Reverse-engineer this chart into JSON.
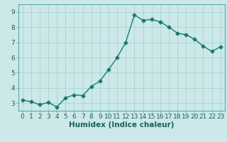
{
  "x": [
    0,
    1,
    2,
    3,
    4,
    5,
    6,
    7,
    8,
    9,
    10,
    11,
    12,
    13,
    14,
    15,
    16,
    17,
    18,
    19,
    20,
    21,
    22,
    23
  ],
  "y": [
    3.2,
    3.1,
    2.9,
    3.05,
    2.75,
    3.35,
    3.55,
    3.5,
    4.1,
    4.45,
    5.2,
    6.0,
    7.0,
    8.8,
    8.45,
    8.5,
    8.35,
    8.0,
    7.6,
    7.5,
    7.2,
    6.75,
    6.4,
    6.7
  ],
  "line_color": "#1a7a6e",
  "marker": "D",
  "marker_size": 2.5,
  "bg_color": "#cce8e8",
  "grid_color": "#aad4d4",
  "xlabel": "Humidex (Indice chaleur)",
  "ylim": [
    2.5,
    9.5
  ],
  "xlim": [
    -0.5,
    23.5
  ],
  "yticks": [
    3,
    4,
    5,
    6,
    7,
    8,
    9
  ],
  "xticks": [
    0,
    1,
    2,
    3,
    4,
    5,
    6,
    7,
    8,
    9,
    10,
    11,
    12,
    13,
    14,
    15,
    16,
    17,
    18,
    19,
    20,
    21,
    22,
    23
  ],
  "xlabel_fontsize": 7.5,
  "tick_fontsize": 6.5,
  "linewidth": 1.0,
  "spine_color": "#5aabab"
}
